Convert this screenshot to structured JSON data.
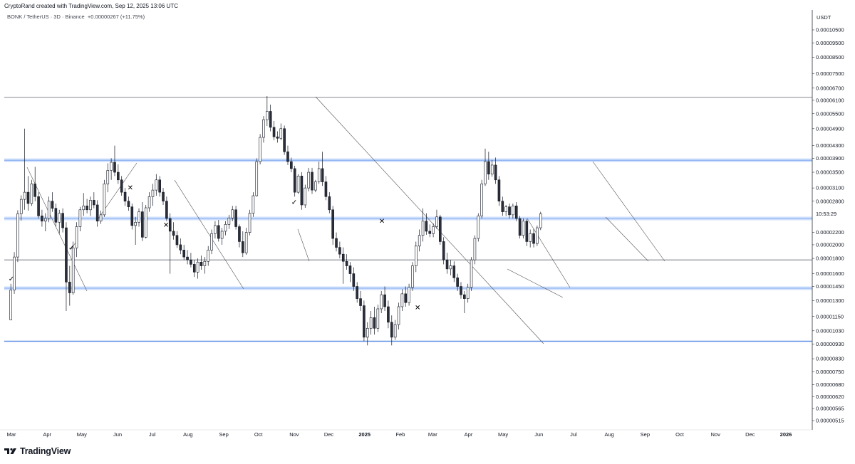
{
  "header": {
    "attribution": "CryptoRand created with TradingView.com, Sep 12, 2025 13:06 UTC",
    "symbol": "BONK / TetherUS · 3D · Binance",
    "change": "+0.00000267 (+11.75%)"
  },
  "brand": {
    "name": "TradingView"
  },
  "chart_data": {
    "type": "candlestick",
    "y_axis_unit": "USDT",
    "y_scale": "log",
    "y_ticks": [
      "0.00010500",
      "0.00009500",
      "0.00008500",
      "0.00007500",
      "0.00006700",
      "0.00006100",
      "0.00005500",
      "0.00004900",
      "0.00004300",
      "0.00003900",
      "0.00003500",
      "0.00003100",
      "0.00002800",
      "0.00002200",
      "0.00002000",
      "0.00001800",
      "0.00001600",
      "0.00001450",
      "0.00001300",
      "0.00001150",
      "0.00001030",
      "0.00000930",
      "0.00000830",
      "0.00000750",
      "0.00000680",
      "0.00000620",
      "0.00000565",
      "0.00000515"
    ],
    "time_label": "10:53:29",
    "x_ticks": [
      "Mar",
      "Apr",
      "May",
      "Jun",
      "Jul",
      "Aug",
      "Sep",
      "Oct",
      "Nov",
      "Dec",
      "2025",
      "Feb",
      "Mar",
      "Apr",
      "May",
      "Jun",
      "Jul",
      "Aug",
      "Sep",
      "Oct",
      "Nov",
      "Dec",
      "2026"
    ],
    "horizontal_levels": [
      {
        "price": 6.24e-05,
        "style": "gray"
      },
      {
        "price": 3.84e-05,
        "style": "blue-zone"
      },
      {
        "price": 2.45e-05,
        "style": "blue-zone"
      },
      {
        "price": 1.78e-05,
        "style": "gray"
      },
      {
        "price": 1.43e-05,
        "style": "blue-zone"
      },
      {
        "price": 9.5e-06,
        "style": "blue"
      }
    ],
    "markers": [
      {
        "symbol": "✓",
        "date": "2024-03-01",
        "price": 1.51e-05
      },
      {
        "symbol": "✓",
        "date": "2024-04-22",
        "price": 1.92e-05
      },
      {
        "symbol": "✕",
        "date": "2024-06-12",
        "price": 3.05e-05
      },
      {
        "symbol": "✕",
        "date": "2024-07-13",
        "price": 2.29e-05
      },
      {
        "symbol": "✓",
        "date": "2024-11-01",
        "price": 2.73e-05
      },
      {
        "symbol": "✕",
        "date": "2025-01-16",
        "price": 2.36e-05
      },
      {
        "symbol": "✕",
        "date": "2025-02-16",
        "price": 1.21e-05
      }
    ],
    "candles": [
      [
        1.12e-05,
        1.48e-05,
        1.12e-05,
        1.41e-05
      ],
      [
        1.41e-05,
        1.89e-05,
        1.37e-05,
        1.82e-05
      ],
      [
        1.82e-05,
        2.61e-05,
        1.75e-05,
        2.54e-05
      ],
      [
        2.54e-05,
        2.93e-05,
        2.41e-05,
        2.84e-05
      ],
      [
        2.84e-05,
        4.9e-05,
        2.62e-05,
        3e-05
      ],
      [
        3e-05,
        3.4e-05,
        2.6e-05,
        2.75e-05
      ],
      [
        2.75e-05,
        3.3e-05,
        2.7e-05,
        3.2e-05
      ],
      [
        3.2e-05,
        3.65e-05,
        2.8e-05,
        2.9e-05
      ],
      [
        2.9e-05,
        3e-05,
        2.45e-05,
        2.5e-05
      ],
      [
        2.5e-05,
        2.62e-05,
        2.3e-05,
        2.4e-05
      ],
      [
        2.4e-05,
        2.55e-05,
        2.22e-05,
        2.45e-05
      ],
      [
        2.45e-05,
        2.9e-05,
        2.38e-05,
        2.8e-05
      ],
      [
        2.8e-05,
        3e-05,
        2.58e-05,
        2.65e-05
      ],
      [
        2.65e-05,
        2.75e-05,
        2.3e-05,
        2.38e-05
      ],
      [
        2.38e-05,
        2.62e-05,
        2.18e-05,
        2.55e-05
      ],
      [
        2.55e-05,
        2.65e-05,
        2.2e-05,
        2.28e-05
      ],
      [
        2.28e-05,
        2.38e-05,
        1.2e-05,
        1.5e-05
      ],
      [
        1.5e-05,
        1.7e-05,
        1.25e-05,
        1.38e-05
      ],
      [
        1.38e-05,
        2.05e-05,
        1.36e-05,
        1.95e-05
      ],
      [
        1.95e-05,
        2.38e-05,
        1.82e-05,
        2.3e-05
      ],
      [
        2.3e-05,
        2.68e-05,
        2.22e-05,
        2.62e-05
      ],
      [
        2.62e-05,
        2.98e-05,
        2.5e-05,
        2.7e-05
      ],
      [
        2.7e-05,
        2.85e-05,
        2.55e-05,
        2.62e-05
      ],
      [
        2.62e-05,
        2.9e-05,
        2.5e-05,
        2.82e-05
      ],
      [
        2.82e-05,
        3e-05,
        2.65e-05,
        2.72e-05
      ],
      [
        2.72e-05,
        2.82e-05,
        2.3e-05,
        2.4e-05
      ],
      [
        2.4e-05,
        2.6e-05,
        2.35e-05,
        2.52e-05
      ],
      [
        2.52e-05,
        3.3e-05,
        2.48e-05,
        3.2e-05
      ],
      [
        3.2e-05,
        3.75e-05,
        3e-05,
        3.55e-05
      ],
      [
        3.55e-05,
        3.9e-05,
        3.3e-05,
        3.78e-05
      ],
      [
        3.78e-05,
        4.3e-05,
        3.4e-05,
        3.5e-05
      ],
      [
        3.5e-05,
        3.72e-05,
        3.2e-05,
        3.3e-05
      ],
      [
        3.3e-05,
        3.4e-05,
        2.92e-05,
        3e-05
      ],
      [
        3e-05,
        3.1e-05,
        2.7e-05,
        2.8e-05
      ],
      [
        2.8e-05,
        2.9e-05,
        2.6e-05,
        2.68e-05
      ],
      [
        2.68e-05,
        2.75e-05,
        2.25e-05,
        2.32e-05
      ],
      [
        2.32e-05,
        2.48e-05,
        2e-05,
        2.38e-05
      ],
      [
        2.38e-05,
        2.65e-05,
        2.3e-05,
        2.58e-05
      ],
      [
        2.58e-05,
        2.78e-05,
        2.06e-05,
        2.12e-05
      ],
      [
        2.12e-05,
        2.72e-05,
        2.1e-05,
        2.66e-05
      ],
      [
        2.66e-05,
        3e-05,
        2.58e-05,
        2.9e-05
      ],
      [
        2.9e-05,
        3.2e-05,
        2.7e-05,
        3.05e-05
      ],
      [
        3.05e-05,
        3.45e-05,
        2.92e-05,
        3.3e-05
      ],
      [
        3.3e-05,
        3.4e-05,
        2.9e-05,
        3e-05
      ],
      [
        3e-05,
        3.1e-05,
        2.72e-05,
        2.8e-05
      ],
      [
        2.8e-05,
        2.9e-05,
        2.4e-05,
        2.45e-05
      ],
      [
        2.45e-05,
        2.55e-05,
        1.6e-05,
        2.22e-05
      ],
      [
        2.22e-05,
        2.38e-05,
        2.08e-05,
        2.15e-05
      ],
      [
        2.15e-05,
        2.22e-05,
        1.95e-05,
        2e-05
      ],
      [
        2e-05,
        2.1e-05,
        1.86e-05,
        1.92e-05
      ],
      [
        1.92e-05,
        2e-05,
        1.78e-05,
        1.82e-05
      ],
      [
        1.82e-05,
        1.92e-05,
        1.72e-05,
        1.78e-05
      ],
      [
        1.78e-05,
        1.88e-05,
        1.68e-05,
        1.72e-05
      ],
      [
        1.72e-05,
        1.78e-05,
        1.56e-05,
        1.62e-05
      ],
      [
        1.62e-05,
        1.8e-05,
        1.54e-05,
        1.75e-05
      ],
      [
        1.75e-05,
        1.84e-05,
        1.65e-05,
        1.7e-05
      ],
      [
        1.7e-05,
        1.82e-05,
        1.6e-05,
        1.76e-05
      ],
      [
        1.76e-05,
        1.98e-05,
        1.7e-05,
        1.92e-05
      ],
      [
        1.92e-05,
        2.25e-05,
        1.86e-05,
        2.18e-05
      ],
      [
        2.18e-05,
        2.4e-05,
        2.1e-05,
        2.32e-05
      ],
      [
        2.32e-05,
        2.42e-05,
        2.05e-05,
        2.1e-05
      ],
      [
        2.1e-05,
        2.28e-05,
        2e-05,
        2.22e-05
      ],
      [
        2.22e-05,
        2.4e-05,
        2.15e-05,
        2.34e-05
      ],
      [
        2.34e-05,
        2.52e-05,
        2.26e-05,
        2.46e-05
      ],
      [
        2.46e-05,
        2.7e-05,
        2.4e-05,
        2.62e-05
      ],
      [
        2.62e-05,
        2.7e-05,
        2.25e-05,
        2.3e-05
      ],
      [
        2.3e-05,
        2.34e-05,
        1.96e-05,
        2.05e-05
      ],
      [
        2.05e-05,
        2.22e-05,
        1.82e-05,
        1.88e-05
      ],
      [
        1.88e-05,
        2.28e-05,
        1.85e-05,
        2.2e-05
      ],
      [
        2.2e-05,
        2.62e-05,
        2.15e-05,
        2.55e-05
      ],
      [
        2.55e-05,
        3e-05,
        2.48e-05,
        2.92e-05
      ],
      [
        2.92e-05,
        3.9e-05,
        2.9e-05,
        3.8e-05
      ],
      [
        3.8e-05,
        4.7e-05,
        3.72e-05,
        4.58e-05
      ],
      [
        4.58e-05,
        5.4e-05,
        4.4e-05,
        5.25e-05
      ],
      [
        5.25e-05,
        6.3e-05,
        5e-05,
        5.6e-05
      ],
      [
        5.6e-05,
        5.9e-05,
        4.8e-05,
        4.95e-05
      ],
      [
        4.95e-05,
        5.2e-05,
        4.48e-05,
        4.6e-05
      ],
      [
        4.6e-05,
        4.8e-05,
        4.4e-05,
        4.55e-05
      ],
      [
        4.55e-05,
        5.1e-05,
        4.48e-05,
        4.9e-05
      ],
      [
        4.9e-05,
        5.02e-05,
        4e-05,
        4.1e-05
      ],
      [
        4.1e-05,
        4.3e-05,
        3.7e-05,
        3.8e-05
      ],
      [
        3.8e-05,
        3.92e-05,
        3.5e-05,
        3.6e-05
      ],
      [
        3.6e-05,
        3.68e-05,
        2.9e-05,
        3e-05
      ],
      [
        3e-05,
        3.45e-05,
        2.96e-05,
        3.4e-05
      ],
      [
        3.4e-05,
        3.5e-05,
        2.62e-05,
        2.72e-05
      ],
      [
        2.72e-05,
        3.18e-05,
        2.66e-05,
        3.1e-05
      ],
      [
        3.1e-05,
        3.62e-05,
        3.02e-05,
        3.5e-05
      ],
      [
        3.5e-05,
        3.62e-05,
        2.96e-05,
        3.05e-05
      ],
      [
        3.05e-05,
        3.3e-05,
        3e-05,
        3.25e-05
      ],
      [
        3.25e-05,
        3.8e-05,
        3.2e-05,
        3.6e-05
      ],
      [
        3.6e-05,
        4.1e-05,
        3.15e-05,
        3.25e-05
      ],
      [
        3.25e-05,
        3.4e-05,
        2.82e-05,
        2.9e-05
      ],
      [
        2.9e-05,
        3e-05,
        2.55e-05,
        2.62e-05
      ],
      [
        2.62e-05,
        2.7e-05,
        2e-05,
        2.1e-05
      ],
      [
        2.1e-05,
        2.2e-05,
        1.9e-05,
        1.96e-05
      ],
      [
        1.96e-05,
        2.05e-05,
        1.8e-05,
        1.86e-05
      ],
      [
        1.86e-05,
        1.96e-05,
        1.48e-05,
        1.76e-05
      ],
      [
        1.76e-05,
        1.86e-05,
        1.65e-05,
        1.7e-05
      ],
      [
        1.7e-05,
        1.75e-05,
        1.5e-05,
        1.6e-05
      ],
      [
        1.6e-05,
        1.68e-05,
        1.4e-05,
        1.45e-05
      ],
      [
        1.45e-05,
        1.5e-05,
        1.28e-05,
        1.32e-05
      ],
      [
        1.32e-05,
        1.4e-05,
        1.2e-05,
        1.25e-05
      ],
      [
        1.25e-05,
        1.3e-05,
        9.5e-06,
        9.8e-06
      ],
      [
        9.8e-06,
        1.1e-05,
        9.2e-06,
        1.05e-05
      ],
      [
        1.05e-05,
        1.2e-05,
        1e-05,
        1.14e-05
      ],
      [
        1.14e-05,
        1.24e-05,
        1e-05,
        1.05e-05
      ],
      [
        1.05e-05,
        1.26e-05,
        1.02e-05,
        1.22e-05
      ],
      [
        1.22e-05,
        1.4e-05,
        1.18e-05,
        1.36e-05
      ],
      [
        1.36e-05,
        1.45e-05,
        1.2e-05,
        1.24e-05
      ],
      [
        1.24e-05,
        1.3e-05,
        1.05e-05,
        1.1e-05
      ],
      [
        1.1e-05,
        1.16e-05,
        9.2e-06,
        9.8e-06
      ],
      [
        9.8e-06,
        1.12e-05,
        9.6e-06,
        1.08e-05
      ],
      [
        1.08e-05,
        1.28e-05,
        1.04e-05,
        1.24e-05
      ],
      [
        1.24e-05,
        1.42e-05,
        1.2e-05,
        1.37e-05
      ],
      [
        1.37e-05,
        1.45e-05,
        1.24e-05,
        1.28e-05
      ],
      [
        1.28e-05,
        1.48e-05,
        1.25e-05,
        1.44e-05
      ],
      [
        1.44e-05,
        1.75e-05,
        1.4e-05,
        1.7e-05
      ],
      [
        1.7e-05,
        2.05e-05,
        1.62e-05,
        1.98e-05
      ],
      [
        1.98e-05,
        2.25e-05,
        1.9e-05,
        2.15e-05
      ],
      [
        2.15e-05,
        2.65e-05,
        2.05e-05,
        2.4e-05
      ],
      [
        2.4e-05,
        2.55e-05,
        2.16e-05,
        2.22e-05
      ],
      [
        2.22e-05,
        2.34e-05,
        2.12e-05,
        2.18e-05
      ],
      [
        2.18e-05,
        2.36e-05,
        2.12e-05,
        2.3e-05
      ],
      [
        2.3e-05,
        2.62e-05,
        2.26e-05,
        2.48e-05
      ],
      [
        2.48e-05,
        2.52e-05,
        2e-05,
        2.05e-05
      ],
      [
        2.05e-05,
        2.12e-05,
        1.72e-05,
        1.78e-05
      ],
      [
        1.78e-05,
        1.88e-05,
        1.6e-05,
        1.66e-05
      ],
      [
        1.66e-05,
        1.78e-05,
        1.58e-05,
        1.7e-05
      ],
      [
        1.7e-05,
        1.76e-05,
        1.5e-05,
        1.55e-05
      ],
      [
        1.55e-05,
        1.6e-05,
        1.4e-05,
        1.45e-05
      ],
      [
        1.45e-05,
        1.5e-05,
        1.32e-05,
        1.36e-05
      ],
      [
        1.36e-05,
        1.4e-05,
        1.18e-05,
        1.32e-05
      ],
      [
        1.32e-05,
        1.48e-05,
        1.28e-05,
        1.44e-05
      ],
      [
        1.44e-05,
        1.82e-05,
        1.4e-05,
        1.78e-05
      ],
      [
        1.78e-05,
        2.15e-05,
        1.72e-05,
        2.1e-05
      ],
      [
        2.1e-05,
        2.55e-05,
        2.05e-05,
        2.5e-05
      ],
      [
        2.5e-05,
        3.3e-05,
        2.45e-05,
        3.2e-05
      ],
      [
        3.2e-05,
        4.2e-05,
        3.15e-05,
        3.8e-05
      ],
      [
        3.8e-05,
        4.1e-05,
        3.3e-05,
        3.45e-05
      ],
      [
        3.45e-05,
        3.85e-05,
        3.38e-05,
        3.7e-05
      ],
      [
        3.7e-05,
        3.92e-05,
        3.2e-05,
        3.3e-05
      ],
      [
        3.3e-05,
        3.4e-05,
        2.7e-05,
        2.8e-05
      ],
      [
        2.8e-05,
        2.9e-05,
        2.5e-05,
        2.58e-05
      ],
      [
        2.58e-05,
        2.72e-05,
        2.5e-05,
        2.68e-05
      ],
      [
        2.68e-05,
        2.75e-05,
        2.45e-05,
        2.52e-05
      ],
      [
        2.52e-05,
        2.75e-05,
        2.45e-05,
        2.7e-05
      ],
      [
        2.7e-05,
        2.78e-05,
        2.4e-05,
        2.45e-05
      ],
      [
        2.45e-05,
        2.5e-05,
        2.1e-05,
        2.15e-05
      ],
      [
        2.15e-05,
        2.45e-05,
        2.1e-05,
        2.4e-05
      ],
      [
        2.4e-05,
        2.44e-05,
        1.98e-05,
        2.05e-05
      ],
      [
        2.05e-05,
        2.25e-05,
        1.96e-05,
        2.18e-05
      ],
      [
        2.18e-05,
        2.26e-05,
        1.96e-05,
        2.02e-05
      ],
      [
        2.02e-05,
        2.32e-05,
        1.98e-05,
        2.28e-05
      ],
      [
        2.28e-05,
        2.58e-05,
        2.24e-05,
        2.54e-05
      ]
    ]
  }
}
